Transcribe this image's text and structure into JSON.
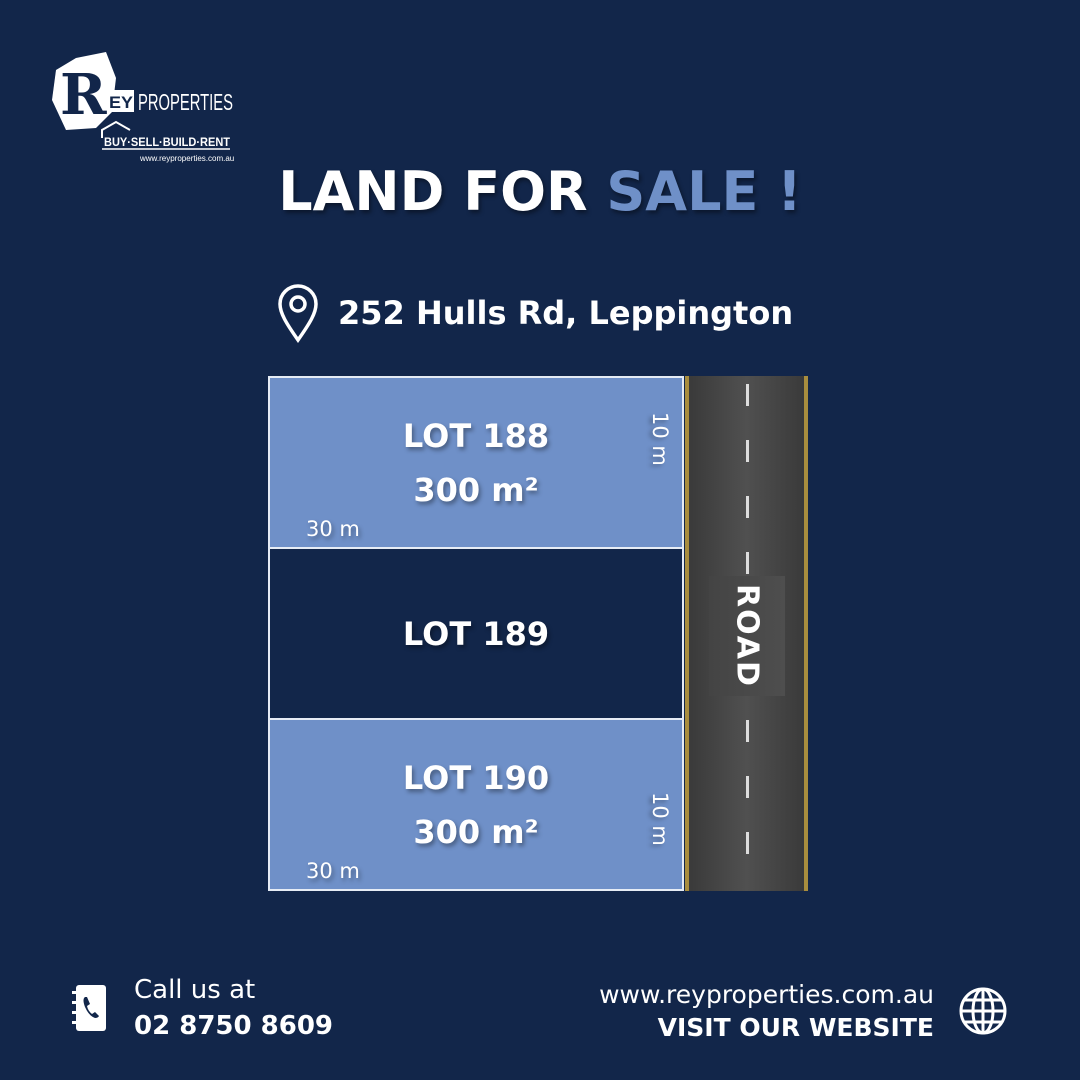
{
  "logo": {
    "brand": "REYPROPERTIES",
    "tagline": "BUY·SELL·BUILD·RENT",
    "url": "www.reyproperties.com.au"
  },
  "title": {
    "main": "LAND FOR ",
    "accent": "SALE !"
  },
  "address": {
    "icon": "location-pin-icon",
    "text": "252 Hulls Rd, Leppington"
  },
  "lots": [
    {
      "name": "LOT 188",
      "area": "300 m²",
      "width": "30 m",
      "depth": "10 m"
    },
    {
      "name": "LOT 189"
    },
    {
      "name": "LOT 190",
      "area": "300 m²",
      "width": "30 m",
      "depth": "10 m"
    }
  ],
  "road": {
    "label": "ROAD"
  },
  "contact": {
    "icon": "phone-book-icon",
    "label": "Call us at",
    "phone": "02 8750 8609"
  },
  "website": {
    "icon": "globe-icon",
    "url": "www.reyproperties.com.au",
    "cta": "VISIT OUR WEBSITE"
  },
  "colors": {
    "background": "#12264a",
    "accent": "#6f90c8",
    "road_edge": "#a88d3e"
  }
}
